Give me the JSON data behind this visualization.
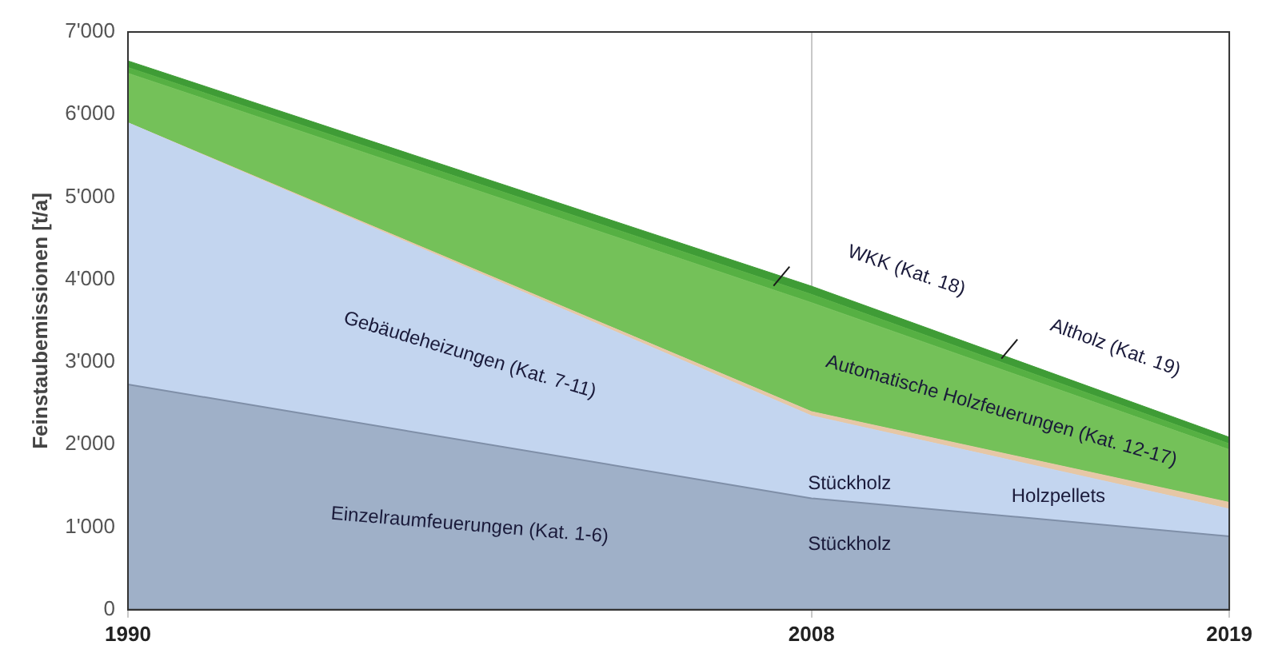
{
  "chart_data": {
    "type": "area",
    "ylabel": "Feinstaubemissionen [t/a]",
    "x": [
      1990,
      2008,
      2019
    ],
    "stacked": true,
    "xlim": [
      1990,
      2019
    ],
    "xticks": [
      1990,
      2008,
      2019
    ],
    "ylim": [
      0,
      7000
    ],
    "yticks": [
      0,
      {
        "value": 1000,
        "label": "1'000"
      },
      {
        "value": 2000,
        "label": "2'000"
      },
      {
        "value": 3000,
        "label": "3'000"
      },
      {
        "value": 4000,
        "label": "4'000"
      },
      {
        "value": 5000,
        "label": "5'000"
      },
      {
        "value": 6000,
        "label": "6'000"
      },
      {
        "value": 7000,
        "label": "7'000"
      }
    ],
    "grid": "x",
    "legend": false,
    "series": [
      {
        "name": "Einzelraumfeuerungen (Kat. 1-6)",
        "color": "#9fb0c8",
        "values": [
          2730,
          1350,
          890
        ]
      },
      {
        "name": "Gebäudeheizungen (Kat. 7-11)",
        "color": "#c3d5ef",
        "values": [
          3170,
          1000,
          330
        ]
      },
      {
        "name": "Holzpellets",
        "color": "#e6c7a6",
        "values": [
          0,
          50,
          80
        ]
      },
      {
        "name": "Automatische Holzfeuerungen (Kat. 12-17)",
        "color": "#74c159",
        "values": [
          600,
          1320,
          640
        ]
      },
      {
        "name": "WKK (Kat. 18)",
        "color": "#56b043",
        "values": [
          70,
          100,
          70
        ]
      },
      {
        "name": "Altholz (Kat. 19)",
        "color": "#3f9c36",
        "values": [
          80,
          100,
          80
        ]
      }
    ],
    "annotations": [
      "Stückholz",
      "Stückholz"
    ]
  }
}
